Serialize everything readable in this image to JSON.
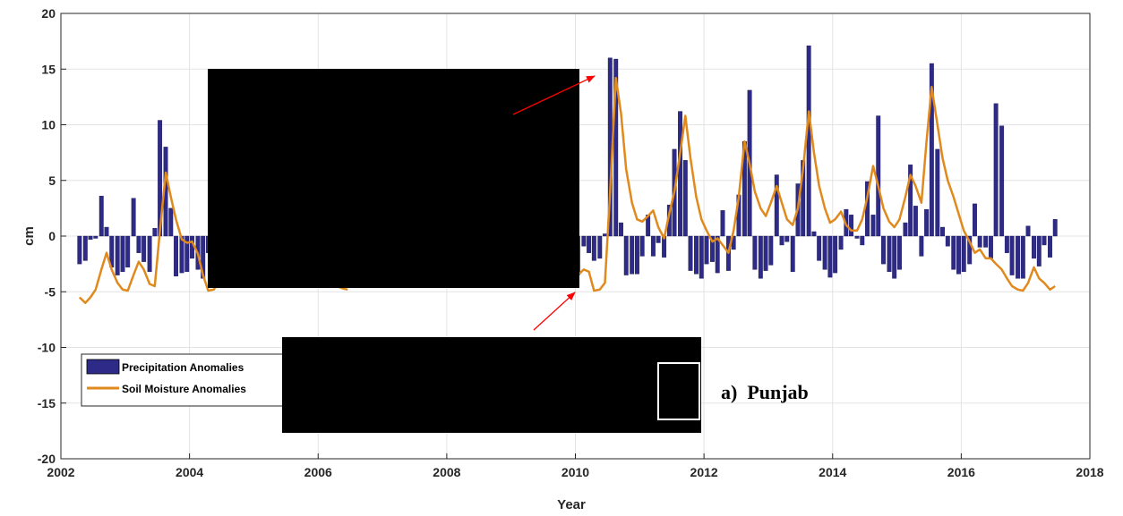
{
  "chart_data": {
    "type": "bar",
    "xlabel": "Year",
    "ylabel": "cm",
    "xlim": [
      2002,
      2018
    ],
    "ylim": [
      -20,
      20
    ],
    "x_ticks": [
      "2002",
      "2004",
      "2006",
      "2008",
      "2010",
      "2012",
      "2014",
      "2016",
      "2018"
    ],
    "y_ticks": [
      "-20",
      "-15",
      "-10",
      "-5",
      "0",
      "5",
      "10",
      "15",
      "20"
    ],
    "grid": true,
    "legend_location": "bottom-left",
    "panel_label": "a)  Punjab",
    "colors": {
      "bars": "#2e2a87",
      "line": "#e08a1e",
      "arrow": "#ff0000"
    },
    "series": [
      {
        "name": "Precipitation Anomalies",
        "type": "bar",
        "x": [
          2002.29,
          2002.38,
          2002.46,
          2002.54,
          2002.63,
          2002.71,
          2002.79,
          2002.88,
          2002.96,
          2003.04,
          2003.13,
          2003.21,
          2003.29,
          2003.38,
          2003.46,
          2003.54,
          2003.63,
          2003.71,
          2003.79,
          2003.88,
          2003.96,
          2004.04,
          2004.13,
          2004.21,
          2004.29,
          2004.38,
          2010.04,
          2010.13,
          2010.21,
          2010.29,
          2010.38,
          2010.46,
          2010.54,
          2010.63,
          2010.71,
          2010.79,
          2010.88,
          2010.96,
          2011.04,
          2011.13,
          2011.21,
          2011.29,
          2011.38,
          2011.46,
          2011.54,
          2011.63,
          2011.71,
          2011.79,
          2011.88,
          2011.96,
          2012.04,
          2012.13,
          2012.21,
          2012.29,
          2012.38,
          2012.46,
          2012.54,
          2012.63,
          2012.71,
          2012.79,
          2012.88,
          2012.96,
          2013.04,
          2013.13,
          2013.21,
          2013.29,
          2013.38,
          2013.46,
          2013.54,
          2013.63,
          2013.71,
          2013.79,
          2013.88,
          2013.96,
          2014.04,
          2014.13,
          2014.21,
          2014.29,
          2014.38,
          2014.46,
          2014.54,
          2014.63,
          2014.71,
          2014.79,
          2014.88,
          2014.96,
          2015.04,
          2015.13,
          2015.21,
          2015.29,
          2015.38,
          2015.46,
          2015.54,
          2015.63,
          2015.71,
          2015.79,
          2015.88,
          2015.96,
          2016.04,
          2016.13,
          2016.21,
          2016.29,
          2016.38,
          2016.46,
          2016.54,
          2016.63,
          2016.71,
          2016.79,
          2016.88,
          2016.96,
          2017.04,
          2017.13,
          2017.21,
          2017.29,
          2017.38,
          2017.46
        ],
        "values": [
          -2.5,
          -2.2,
          -0.3,
          -0.2,
          3.6,
          0.8,
          -2.8,
          -3.5,
          -3.2,
          -2.8,
          3.4,
          -1.5,
          -2.3,
          -3.2,
          0.7,
          10.4,
          8.0,
          2.5,
          -3.6,
          -3.3,
          -3.2,
          -2.0,
          -3.0,
          -3.8,
          -1.5,
          -0.5,
          -3.5,
          -0.9,
          -1.5,
          -2.2,
          -2.0,
          0.2,
          16.0,
          15.9,
          1.2,
          -3.5,
          -3.4,
          -3.4,
          -1.8,
          1.9,
          -1.8,
          -0.6,
          -1.9,
          2.8,
          7.8,
          11.2,
          6.8,
          -3.1,
          -3.4,
          -3.8,
          -2.5,
          -2.3,
          -3.3,
          2.3,
          -3.1,
          -1.2,
          3.7,
          8.5,
          13.1,
          -3.0,
          -3.8,
          -3.1,
          -2.6,
          5.5,
          -0.8,
          -0.5,
          -3.2,
          4.7,
          6.8,
          17.1,
          0.4,
          -2.2,
          -3.0,
          -3.7,
          -3.3,
          -1.2,
          2.4,
          1.9,
          -0.2,
          -0.8,
          4.9,
          1.9,
          10.8,
          -2.5,
          -3.2,
          -3.8,
          -3.0,
          1.2,
          6.4,
          2.7,
          -1.8,
          2.4,
          15.5,
          7.8,
          0.8,
          -0.9,
          -3.0,
          -3.4,
          -3.2,
          -2.5,
          2.9,
          -1.0,
          -1.0,
          -2.0,
          11.9,
          9.9,
          -1.5,
          -3.5,
          -3.8,
          -3.8,
          0.9,
          -2.0,
          -2.7,
          -0.8,
          -1.9,
          1.5
        ]
      },
      {
        "name": "Soil Moisture Anomalies",
        "type": "line",
        "x": [
          2002.29,
          2002.38,
          2002.46,
          2002.54,
          2002.63,
          2002.71,
          2002.79,
          2002.88,
          2002.96,
          2003.04,
          2003.13,
          2003.21,
          2003.29,
          2003.38,
          2003.46,
          2003.54,
          2003.63,
          2003.71,
          2003.79,
          2003.88,
          2003.96,
          2004.04,
          2004.13,
          2004.21,
          2004.29,
          2004.38,
          2004.46,
          2006.29,
          2006.38,
          2006.46,
          2010.0,
          2010.04,
          2010.13,
          2010.21,
          2010.29,
          2010.38,
          2010.46,
          2010.54,
          2010.63,
          2010.71,
          2010.79,
          2010.88,
          2010.96,
          2011.04,
          2011.13,
          2011.21,
          2011.29,
          2011.38,
          2011.46,
          2011.54,
          2011.63,
          2011.71,
          2011.79,
          2011.88,
          2011.96,
          2012.04,
          2012.13,
          2012.21,
          2012.29,
          2012.38,
          2012.46,
          2012.54,
          2012.63,
          2012.71,
          2012.79,
          2012.88,
          2012.96,
          2013.04,
          2013.13,
          2013.21,
          2013.29,
          2013.38,
          2013.46,
          2013.54,
          2013.63,
          2013.71,
          2013.79,
          2013.88,
          2013.96,
          2014.04,
          2014.13,
          2014.21,
          2014.29,
          2014.38,
          2014.46,
          2014.54,
          2014.63,
          2014.71,
          2014.79,
          2014.88,
          2014.96,
          2015.04,
          2015.13,
          2015.21,
          2015.29,
          2015.38,
          2015.46,
          2015.54,
          2015.63,
          2015.71,
          2015.79,
          2015.88,
          2015.96,
          2016.04,
          2016.13,
          2016.21,
          2016.29,
          2016.38,
          2016.46,
          2016.54,
          2016.63,
          2016.71,
          2016.79,
          2016.88,
          2016.96,
          2017.04,
          2017.13,
          2017.21,
          2017.29,
          2017.38,
          2017.46
        ],
        "values": [
          -5.5,
          -6.0,
          -5.5,
          -4.8,
          -3.0,
          -1.5,
          -3.0,
          -4.2,
          -4.8,
          -4.9,
          -3.5,
          -2.3,
          -3.0,
          -4.3,
          -4.5,
          0.5,
          5.7,
          3.5,
          1.5,
          -0.3,
          -0.6,
          -0.5,
          -1.6,
          -3.5,
          -4.9,
          -4.8,
          -4.0,
          -4.5,
          -4.7,
          -4.8,
          -4.4,
          -3.5,
          -3.0,
          -3.2,
          -4.9,
          -4.8,
          -4.2,
          4.0,
          14.2,
          11.0,
          6.0,
          3.0,
          1.5,
          1.3,
          1.8,
          2.3,
          0.8,
          -0.2,
          2.0,
          4.0,
          7.5,
          10.8,
          7.0,
          3.5,
          1.5,
          0.5,
          -0.5,
          -0.2,
          -0.8,
          -1.5,
          0.5,
          3.5,
          8.5,
          6.5,
          4.0,
          2.5,
          1.8,
          3.0,
          4.5,
          3.0,
          1.5,
          1.0,
          2.5,
          6.0,
          11.2,
          7.5,
          4.5,
          2.5,
          1.2,
          1.5,
          2.2,
          1.0,
          0.5,
          0.5,
          1.5,
          3.5,
          6.3,
          4.5,
          2.5,
          1.3,
          0.8,
          1.5,
          3.5,
          5.5,
          4.5,
          3.0,
          8.5,
          13.4,
          10.0,
          7.0,
          5.0,
          3.5,
          2.0,
          0.5,
          -0.5,
          -1.5,
          -1.2,
          -2.0,
          -2.0,
          -2.5,
          -3.0,
          -3.8,
          -4.5,
          -4.8,
          -4.9,
          -4.2,
          -2.8,
          -3.8,
          -4.2,
          -4.8,
          -4.5
        ]
      }
    ]
  }
}
